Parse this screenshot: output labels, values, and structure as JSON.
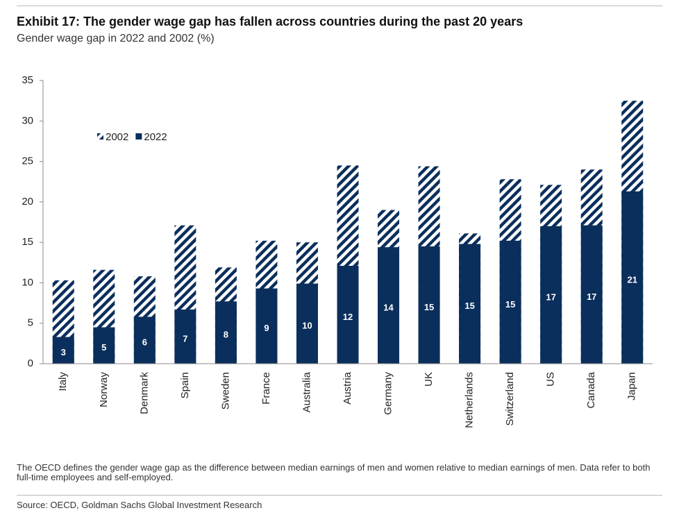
{
  "chart_data": {
    "type": "bar",
    "title": "Exhibit 17: The gender wage gap has fallen across countries during the past 20 years",
    "subtitle": "Gender wage gap in 2022 and 2002 (%)",
    "categories": [
      "Italy",
      "Norway",
      "Denmark",
      "Spain",
      "Sweden",
      "France",
      "Australia",
      "Austria",
      "Germany",
      "UK",
      "Netherlands",
      "Switzerland",
      "US",
      "Canada",
      "Japan"
    ],
    "series": [
      {
        "name": "2002",
        "color": "#0b2f5c",
        "pattern": "hatch",
        "values": [
          10.3,
          11.6,
          10.8,
          17.1,
          11.9,
          15.2,
          15.0,
          24.5,
          19.0,
          24.4,
          16.1,
          22.8,
          22.1,
          24.0,
          32.5
        ]
      },
      {
        "name": "2022",
        "color": "#0b2f5c",
        "values": [
          3.3,
          4.5,
          5.8,
          6.7,
          7.7,
          9.3,
          9.9,
          12.1,
          14.4,
          14.5,
          14.8,
          15.2,
          17.0,
          17.1,
          21.3
        ],
        "value_labels": [
          "3",
          "5",
          "6",
          "7",
          "8",
          "9",
          "10",
          "12",
          "14",
          "15",
          "15",
          "15",
          "17",
          "17",
          "21"
        ]
      }
    ],
    "ylim": [
      0,
      35
    ],
    "yticks": [
      0,
      5,
      10,
      15,
      20,
      25,
      30,
      35
    ],
    "note": "The OECD defines the gender wage gap as the difference between median earnings of men and women relative to median earnings of men. Data refer to both full-time employees and self-employed.",
    "source": "Source: OECD, Goldman Sachs Global Investment Research"
  }
}
